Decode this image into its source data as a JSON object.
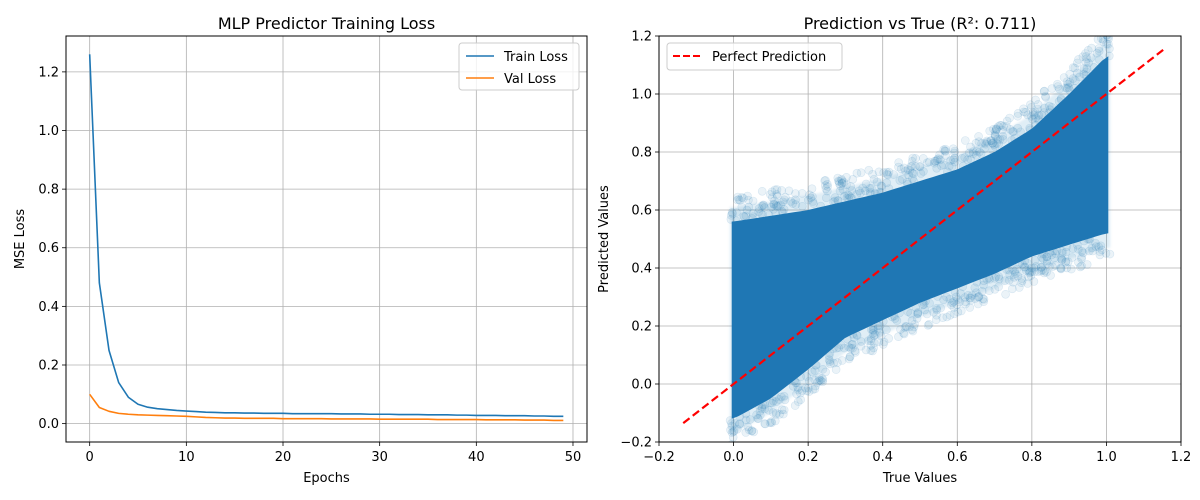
{
  "chart_data": [
    {
      "type": "line",
      "title": "MLP Predictor Training Loss",
      "xlabel": "Epochs",
      "ylabel": "MSE Loss",
      "xlim": [
        -2.45,
        51.45
      ],
      "ylim": [
        -0.0627,
        1.3224
      ],
      "xticks": [
        0,
        10,
        20,
        30,
        40,
        50
      ],
      "yticks": [
        0.0,
        0.2,
        0.4,
        0.6,
        0.8,
        1.0,
        1.2
      ],
      "xtick_labels": [
        "0",
        "10",
        "20",
        "30",
        "40",
        "50"
      ],
      "ytick_labels": [
        "0.0",
        "0.2",
        "0.4",
        "0.6",
        "0.8",
        "1.0",
        "1.2"
      ],
      "grid": true,
      "legend_position": "top-right",
      "series": [
        {
          "name": "Train Loss",
          "color": "#1f77b4",
          "x": [
            0,
            1,
            2,
            3,
            4,
            5,
            6,
            7,
            8,
            9,
            10,
            11,
            12,
            13,
            14,
            15,
            16,
            17,
            18,
            19,
            20,
            21,
            22,
            23,
            24,
            25,
            26,
            27,
            28,
            29,
            30,
            31,
            32,
            33,
            34,
            35,
            36,
            37,
            38,
            39,
            40,
            41,
            42,
            43,
            44,
            45,
            46,
            47,
            48,
            49
          ],
          "y": [
            1.26,
            0.48,
            0.25,
            0.14,
            0.09,
            0.066,
            0.056,
            0.051,
            0.048,
            0.045,
            0.043,
            0.041,
            0.039,
            0.038,
            0.037,
            0.037,
            0.036,
            0.036,
            0.035,
            0.035,
            0.035,
            0.034,
            0.034,
            0.034,
            0.034,
            0.034,
            0.033,
            0.033,
            0.033,
            0.032,
            0.032,
            0.032,
            0.031,
            0.031,
            0.031,
            0.03,
            0.03,
            0.03,
            0.029,
            0.029,
            0.028,
            0.028,
            0.028,
            0.027,
            0.027,
            0.027,
            0.026,
            0.026,
            0.025,
            0.025
          ]
        },
        {
          "name": "Val Loss",
          "color": "#ff7f0e",
          "x": [
            0,
            1,
            2,
            3,
            4,
            5,
            6,
            7,
            8,
            9,
            10,
            11,
            12,
            13,
            14,
            15,
            16,
            17,
            18,
            19,
            20,
            21,
            22,
            23,
            24,
            25,
            26,
            27,
            28,
            29,
            30,
            31,
            32,
            33,
            34,
            35,
            36,
            37,
            38,
            39,
            40,
            41,
            42,
            43,
            44,
            45,
            46,
            47,
            48,
            49
          ],
          "y": [
            0.1,
            0.055,
            0.042,
            0.035,
            0.032,
            0.03,
            0.029,
            0.028,
            0.027,
            0.026,
            0.025,
            0.023,
            0.021,
            0.02,
            0.019,
            0.019,
            0.018,
            0.018,
            0.018,
            0.018,
            0.017,
            0.017,
            0.017,
            0.017,
            0.017,
            0.016,
            0.016,
            0.016,
            0.016,
            0.016,
            0.015,
            0.015,
            0.015,
            0.015,
            0.015,
            0.015,
            0.014,
            0.014,
            0.014,
            0.014,
            0.014,
            0.013,
            0.013,
            0.013,
            0.013,
            0.012,
            0.012,
            0.012,
            0.011,
            0.011
          ]
        }
      ]
    },
    {
      "type": "scatter",
      "title": "Prediction vs True (R²: 0.711)",
      "xlabel": "True Values",
      "ylabel": "Predicted Values",
      "xlim": [
        -0.2,
        1.2
      ],
      "ylim": [
        -0.2,
        1.2
      ],
      "xticks": [
        -0.2,
        0.0,
        0.2,
        0.4,
        0.6,
        0.8,
        1.0,
        1.2
      ],
      "yticks": [
        -0.2,
        0.0,
        0.2,
        0.4,
        0.6,
        0.8,
        1.0,
        1.2
      ],
      "xtick_labels": [
        "−0.2",
        "0.0",
        "0.2",
        "0.4",
        "0.6",
        "0.8",
        "1.0",
        "1.2"
      ],
      "ytick_labels": [
        "−0.2",
        "0.0",
        "0.2",
        "0.4",
        "0.6",
        "0.8",
        "1.0",
        "1.2"
      ],
      "grid": true,
      "legend_position": "top-left",
      "point_color": "#1f77b4",
      "series": [
        {
          "name": "Perfect Prediction",
          "kind": "reference-line",
          "color": "#ff0000",
          "style": "dashed",
          "x": [
            -0.135,
            1.155
          ],
          "y": [
            -0.135,
            1.155
          ]
        }
      ],
      "scatter_trend": {
        "x": [
          0.0,
          0.1,
          0.2,
          0.3,
          0.4,
          0.5,
          0.6,
          0.7,
          0.8,
          0.9,
          1.0
        ],
        "center": [
          0.18,
          0.24,
          0.32,
          0.4,
          0.45,
          0.5,
          0.55,
          0.6,
          0.66,
          0.72,
          0.78
        ],
        "core_low": [
          -0.12,
          -0.05,
          0.05,
          0.16,
          0.22,
          0.28,
          0.33,
          0.38,
          0.44,
          0.48,
          0.52
        ],
        "core_high": [
          0.56,
          0.58,
          0.6,
          0.63,
          0.66,
          0.7,
          0.74,
          0.8,
          0.88,
          1.0,
          1.13
        ]
      }
    }
  ]
}
